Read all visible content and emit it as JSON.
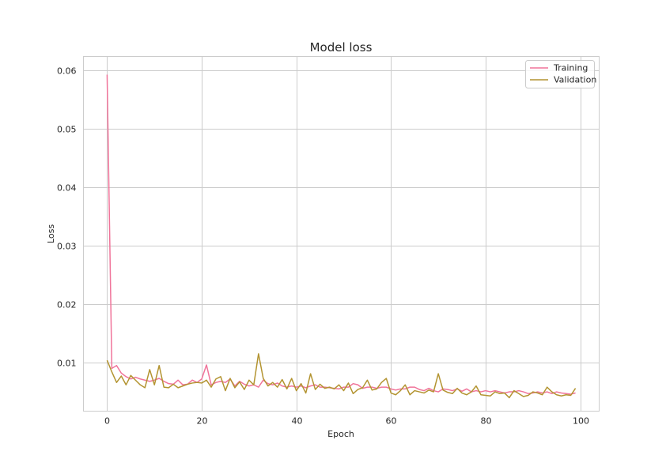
{
  "chart_data": {
    "type": "line",
    "title": "Model loss",
    "xlabel": "Epoch",
    "ylabel": "Loss",
    "xlim": [
      -5,
      104
    ],
    "ylim": [
      0.0017,
      0.0623
    ],
    "xticks": [
      0,
      20,
      40,
      60,
      80,
      100
    ],
    "yticks": [
      0.01,
      0.02,
      0.03,
      0.04,
      0.05,
      0.06
    ],
    "ytick_labels": [
      "0.01",
      "0.02",
      "0.03",
      "0.04",
      "0.05",
      "0.06"
    ],
    "grid": true,
    "legend_position": "top-right",
    "x": [
      0,
      1,
      2,
      3,
      4,
      5,
      6,
      7,
      8,
      9,
      10,
      11,
      12,
      13,
      14,
      15,
      16,
      17,
      18,
      19,
      20,
      21,
      22,
      23,
      24,
      25,
      26,
      27,
      28,
      29,
      30,
      31,
      32,
      33,
      34,
      35,
      36,
      37,
      38,
      39,
      40,
      41,
      42,
      43,
      44,
      45,
      46,
      47,
      48,
      49,
      50,
      51,
      52,
      53,
      54,
      55,
      56,
      57,
      58,
      59,
      60,
      61,
      62,
      63,
      64,
      65,
      66,
      67,
      68,
      69,
      70,
      71,
      72,
      73,
      74,
      75,
      76,
      77,
      78,
      79,
      80,
      81,
      82,
      83,
      84,
      85,
      86,
      87,
      88,
      89,
      90,
      91,
      92,
      93,
      94,
      95,
      96,
      97,
      98,
      99
    ],
    "series": [
      {
        "name": "Training",
        "color": "#f0749a",
        "values": [
          0.0592,
          0.009,
          0.0095,
          0.0082,
          0.0076,
          0.0072,
          0.0075,
          0.0072,
          0.007,
          0.0068,
          0.007,
          0.0073,
          0.0068,
          0.0064,
          0.0063,
          0.007,
          0.0062,
          0.0063,
          0.007,
          0.0066,
          0.0072,
          0.0096,
          0.0062,
          0.0066,
          0.0068,
          0.0066,
          0.0072,
          0.006,
          0.0068,
          0.0063,
          0.006,
          0.0062,
          0.0058,
          0.007,
          0.0064,
          0.0062,
          0.0065,
          0.006,
          0.0058,
          0.006,
          0.0058,
          0.006,
          0.0057,
          0.006,
          0.0062,
          0.0058,
          0.0058,
          0.0057,
          0.0056,
          0.0055,
          0.0058,
          0.0058,
          0.0064,
          0.0062,
          0.0056,
          0.0058,
          0.0058,
          0.0056,
          0.0058,
          0.0058,
          0.0055,
          0.0053,
          0.0055,
          0.0055,
          0.0058,
          0.0058,
          0.0054,
          0.0052,
          0.0056,
          0.0052,
          0.005,
          0.0055,
          0.0054,
          0.0052,
          0.0055,
          0.0051,
          0.0055,
          0.005,
          0.0052,
          0.005,
          0.0052,
          0.005,
          0.0052,
          0.005,
          0.0048,
          0.005,
          0.005,
          0.0052,
          0.005,
          0.0047,
          0.0048,
          0.005,
          0.0048,
          0.005,
          0.0047,
          0.005,
          0.0048,
          0.0047,
          0.0046,
          0.0048
        ]
      },
      {
        "name": "Validation",
        "color": "#b39431",
        "values": [
          0.0104,
          0.0084,
          0.0066,
          0.0077,
          0.0062,
          0.0078,
          0.007,
          0.0062,
          0.0057,
          0.0088,
          0.0062,
          0.0095,
          0.0058,
          0.0057,
          0.0063,
          0.0057,
          0.006,
          0.0063,
          0.0065,
          0.0066,
          0.0065,
          0.007,
          0.0058,
          0.0072,
          0.0076,
          0.0052,
          0.0073,
          0.0057,
          0.0067,
          0.0054,
          0.007,
          0.0062,
          0.0115,
          0.0073,
          0.006,
          0.0066,
          0.0058,
          0.0071,
          0.0055,
          0.0073,
          0.0052,
          0.0064,
          0.0048,
          0.0081,
          0.0054,
          0.0063,
          0.0056,
          0.0058,
          0.0055,
          0.0062,
          0.0052,
          0.0065,
          0.0047,
          0.0054,
          0.0057,
          0.007,
          0.0053,
          0.0055,
          0.0066,
          0.0073,
          0.0048,
          0.0045,
          0.0052,
          0.0062,
          0.0045,
          0.0052,
          0.005,
          0.0048,
          0.0053,
          0.005,
          0.0081,
          0.0053,
          0.0049,
          0.0047,
          0.0056,
          0.0048,
          0.0045,
          0.005,
          0.006,
          0.0045,
          0.0044,
          0.0043,
          0.005,
          0.0047,
          0.0048,
          0.004,
          0.0052,
          0.0047,
          0.0042,
          0.0044,
          0.005,
          0.0048,
          0.0045,
          0.0058,
          0.005,
          0.0045,
          0.0043,
          0.0045,
          0.0044,
          0.0056
        ]
      }
    ]
  }
}
